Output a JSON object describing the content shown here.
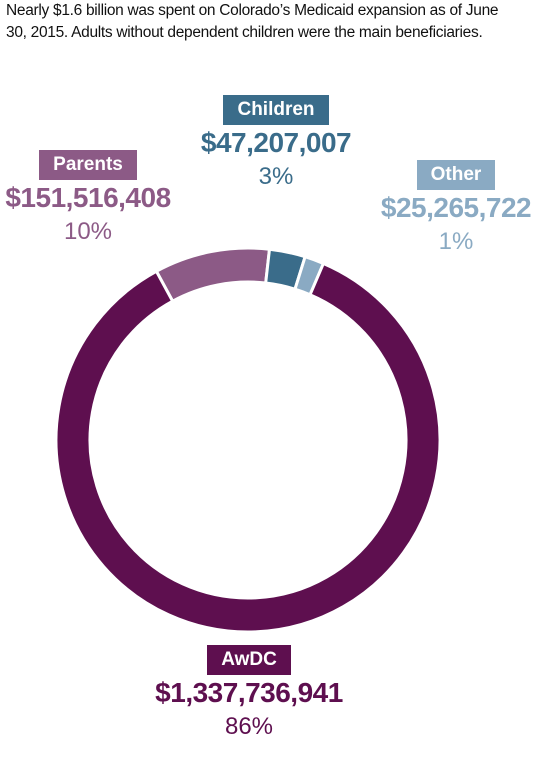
{
  "caption": "Nearly $1.6 billion was spent on Colorado’s Medicaid expansion as of June 30, 2015. Adults without dependent children were the main beneficiaries.",
  "chart_data": {
    "type": "pie",
    "donut": true,
    "series": [
      {
        "name": "AwDC",
        "amount_label": "$1,337,736,941",
        "percent_label": "86%",
        "value": 1337736941,
        "color": "#5e0f4f"
      },
      {
        "name": "Parents",
        "amount_label": "$151,516,408",
        "percent_label": "10%",
        "value": 151516408,
        "color": "#8c5a86"
      },
      {
        "name": "Children",
        "amount_label": "$47,207,007",
        "percent_label": "3%",
        "value": 47207007,
        "color": "#3a6c8a"
      },
      {
        "name": "Other",
        "amount_label": "$25,265,722",
        "percent_label": "1%",
        "value": 25265722,
        "color": "#8aaac3"
      }
    ]
  }
}
